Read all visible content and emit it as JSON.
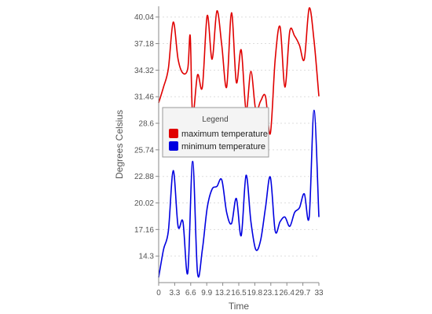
{
  "chart_data": {
    "type": "line",
    "xlabel": "Time",
    "ylabel": "Degrees Celsius",
    "xlim": [
      0,
      33
    ],
    "ylim": [
      11.44,
      41.2
    ],
    "x_ticks": [
      0,
      3.3,
      6.6,
      9.9,
      13.2,
      16.5,
      19.8,
      23.1,
      26.4,
      29.7,
      33
    ],
    "x_tick_labels": [
      "0",
      "3.3",
      "6.6",
      "9.9",
      "13.2",
      "16.5",
      "19.8",
      "23.1",
      "26.4",
      "29.7",
      "33"
    ],
    "y_ticks": [
      14.3,
      17.16,
      20.02,
      22.88,
      25.74,
      28.6,
      31.46,
      34.32,
      37.18,
      40.04
    ],
    "y_tick_labels": [
      "14.3",
      "17.16",
      "20.02",
      "22.88",
      "25.74",
      "28.6",
      "31.46",
      "34.32",
      "37.18",
      "40.04"
    ],
    "grid": true,
    "legend": {
      "title": "Legend",
      "placement": "center-left"
    },
    "series": [
      {
        "name": "maximum temperature",
        "color": "#e00000",
        "x": [
          0,
          1,
          2,
          3,
          4,
          5,
          6,
          6.5,
          7,
          8,
          9,
          10,
          11,
          12,
          13,
          14,
          15,
          16,
          17,
          18,
          19,
          20,
          21,
          22,
          23,
          24,
          25,
          26,
          27,
          28,
          29,
          30,
          31,
          32,
          33
        ],
        "y": [
          30.8,
          32.5,
          34.5,
          39.5,
          35.5,
          34.0,
          34.5,
          38.0,
          29.5,
          33.8,
          32.5,
          40.2,
          35.5,
          40.7,
          37.0,
          32.5,
          40.5,
          33.0,
          36.5,
          30.0,
          34.2,
          30.0,
          31.0,
          31.5,
          27.5,
          35.5,
          39.0,
          32.5,
          38.5,
          38.0,
          37.0,
          35.5,
          41.0,
          37.5,
          31.5
        ]
      },
      {
        "name": "minimum temperature",
        "color": "#0000e0",
        "x": [
          0,
          1,
          2,
          3,
          4,
          5,
          6,
          7,
          8,
          9,
          10,
          11,
          12,
          13,
          14,
          15,
          16,
          17,
          18,
          19,
          20,
          21,
          22,
          23,
          24,
          25,
          26,
          27,
          28,
          29,
          30,
          31,
          32,
          33
        ],
        "y": [
          12.0,
          15.0,
          17.0,
          23.5,
          17.5,
          18.0,
          12.5,
          24.5,
          12.5,
          15.0,
          19.5,
          21.5,
          21.8,
          22.5,
          19.0,
          17.8,
          20.5,
          16.5,
          23.0,
          18.0,
          15.0,
          16.0,
          19.5,
          22.8,
          17.0,
          18.0,
          18.5,
          17.5,
          19.0,
          19.5,
          21.0,
          18.5,
          30.0,
          18.5
        ]
      }
    ]
  }
}
